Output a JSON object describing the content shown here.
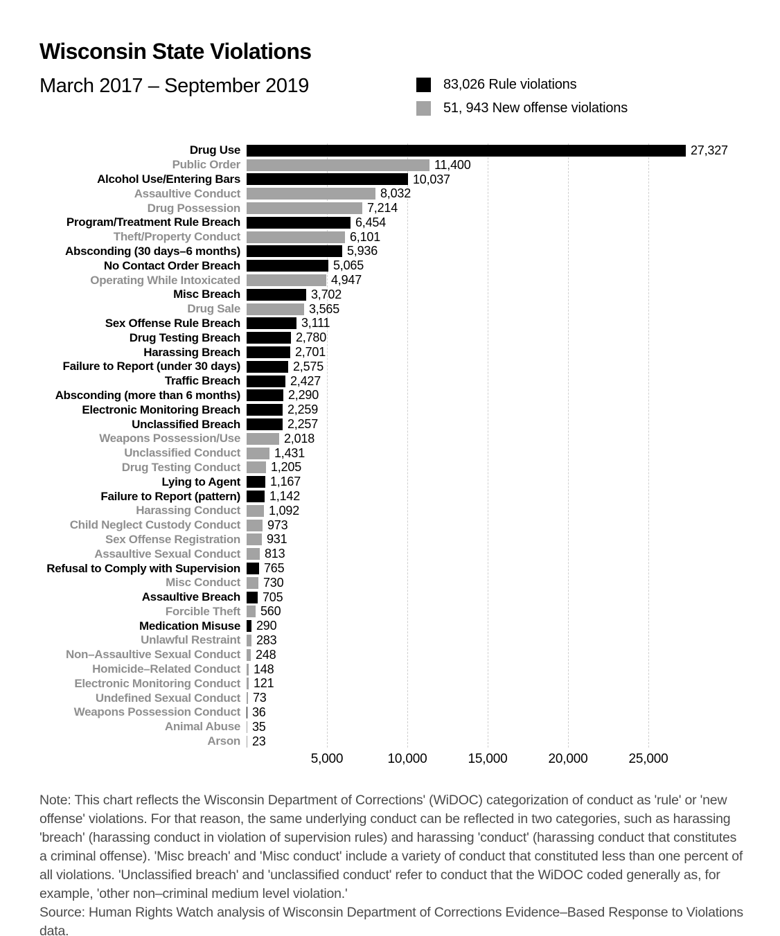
{
  "title": "Wisconsin State Violations",
  "subtitle": "March 2017 – September 2019",
  "colors": {
    "rule": "#000000",
    "new_offense": "#a3a3a3",
    "gray_label": "#8f8f8f",
    "gridline": "#cfcfcf",
    "note_text": "#4a4a4a"
  },
  "legend": {
    "items": [
      {
        "label": "83,026 Rule violations",
        "series": "rule",
        "color": "#000000"
      },
      {
        "label": "51, 943 New offense violations",
        "series": "new_offense",
        "color": "#a3a3a3"
      }
    ]
  },
  "chart_data": {
    "type": "bar",
    "orientation": "horizontal",
    "title": "Wisconsin State Violations",
    "xlabel": "",
    "ylabel": "",
    "xlim": [
      0,
      28000
    ],
    "grid": "vertical-dashed",
    "legend_position": "top-right",
    "x_ticks": [
      {
        "value": 5000,
        "label": "5,000"
      },
      {
        "value": 10000,
        "label": "10,000"
      },
      {
        "value": 15000,
        "label": "15,000"
      },
      {
        "value": 20000,
        "label": "20,000"
      },
      {
        "value": 25000,
        "label": "25,000"
      }
    ],
    "bars": [
      {
        "category": "Drug Use",
        "value": 27327,
        "display": "27,327",
        "series": "rule",
        "label_color": "dark"
      },
      {
        "category": "Public Order",
        "value": 11400,
        "display": "11,400",
        "series": "new_offense",
        "label_color": "gray"
      },
      {
        "category": "Alcohol Use/Entering Bars",
        "value": 10037,
        "display": "10,037",
        "series": "rule",
        "label_color": "dark"
      },
      {
        "category": "Assaultive Conduct",
        "value": 8032,
        "display": "8,032",
        "series": "new_offense",
        "label_color": "gray"
      },
      {
        "category": "Drug Possession",
        "value": 7214,
        "display": "7,214",
        "series": "new_offense",
        "label_color": "gray"
      },
      {
        "category": "Program/Treatment Rule Breach",
        "value": 6454,
        "display": "6,454",
        "series": "rule",
        "label_color": "dark"
      },
      {
        "category": "Theft/Property Conduct",
        "value": 6101,
        "display": "6,101",
        "series": "new_offense",
        "label_color": "gray"
      },
      {
        "category": "Absconding (30 days–6 months)",
        "value": 5936,
        "display": "5,936",
        "series": "rule",
        "label_color": "dark"
      },
      {
        "category": "No Contact Order Breach",
        "value": 5065,
        "display": "5,065",
        "series": "rule",
        "label_color": "dark"
      },
      {
        "category": "Operating While Intoxicated",
        "value": 4947,
        "display": "4,947",
        "series": "new_offense",
        "label_color": "gray"
      },
      {
        "category": "Misc Breach",
        "value": 3702,
        "display": "3,702",
        "series": "rule",
        "label_color": "dark"
      },
      {
        "category": "Drug Sale",
        "value": 3565,
        "display": "3,565",
        "series": "new_offense",
        "label_color": "gray"
      },
      {
        "category": "Sex Offense Rule Breach",
        "value": 3111,
        "display": "3,111",
        "series": "rule",
        "label_color": "dark"
      },
      {
        "category": "Drug Testing Breach",
        "value": 2780,
        "display": "2,780",
        "series": "rule",
        "label_color": "dark"
      },
      {
        "category": "Harassing Breach",
        "value": 2701,
        "display": "2,701",
        "series": "rule",
        "label_color": "dark"
      },
      {
        "category": "Failure to Report (under 30 days)",
        "value": 2575,
        "display": "2,575",
        "series": "rule",
        "label_color": "dark"
      },
      {
        "category": "Traffic Breach",
        "value": 2427,
        "display": "2,427",
        "series": "rule",
        "label_color": "dark"
      },
      {
        "category": "Absconding (more than 6 months)",
        "value": 2290,
        "display": "2,290",
        "series": "rule",
        "label_color": "dark"
      },
      {
        "category": "Electronic Monitoring Breach",
        "value": 2259,
        "display": "2,259",
        "series": "rule",
        "label_color": "dark"
      },
      {
        "category": "Unclassified Breach",
        "value": 2257,
        "display": "2,257",
        "series": "rule",
        "label_color": "dark"
      },
      {
        "category": "Weapons Possession/Use",
        "value": 2018,
        "display": "2,018",
        "series": "new_offense",
        "label_color": "gray"
      },
      {
        "category": "Unclassified Conduct",
        "value": 1431,
        "display": "1,431",
        "series": "new_offense",
        "label_color": "gray"
      },
      {
        "category": "Drug Testing Conduct",
        "value": 1205,
        "display": "1,205",
        "series": "new_offense",
        "label_color": "gray"
      },
      {
        "category": "Lying to Agent",
        "value": 1167,
        "display": "1,167",
        "series": "rule",
        "label_color": "dark"
      },
      {
        "category": "Failure to Report (pattern)",
        "value": 1142,
        "display": "1,142",
        "series": "rule",
        "label_color": "dark"
      },
      {
        "category": "Harassing Conduct",
        "value": 1092,
        "display": "1,092",
        "series": "new_offense",
        "label_color": "gray"
      },
      {
        "category": "Child Neglect Custody Conduct",
        "value": 973,
        "display": "973",
        "series": "new_offense",
        "label_color": "gray"
      },
      {
        "category": "Sex Offense Registration",
        "value": 931,
        "display": "931",
        "series": "new_offense",
        "label_color": "gray"
      },
      {
        "category": "Assaultive Sexual Conduct",
        "value": 813,
        "display": "813",
        "series": "new_offense",
        "label_color": "gray"
      },
      {
        "category": "Refusal to Comply with Supervision",
        "value": 765,
        "display": "765",
        "series": "rule",
        "label_color": "dark"
      },
      {
        "category": "Misc Conduct",
        "value": 730,
        "display": "730",
        "series": "new_offense",
        "label_color": "gray"
      },
      {
        "category": "Assaultive Breach",
        "value": 705,
        "display": "705",
        "series": "rule",
        "label_color": "dark"
      },
      {
        "category": "Forcible Theft",
        "value": 560,
        "display": "560",
        "series": "new_offense",
        "label_color": "gray"
      },
      {
        "category": "Medication Misuse",
        "value": 290,
        "display": "290",
        "series": "rule",
        "label_color": "dark"
      },
      {
        "category": "Unlawful Restraint",
        "value": 283,
        "display": "283",
        "series": "new_offense",
        "label_color": "gray"
      },
      {
        "category": "Non–Assaultive Sexual Conduct",
        "value": 248,
        "display": "248",
        "series": "new_offense",
        "label_color": "gray"
      },
      {
        "category": "Homicide–Related Conduct",
        "value": 148,
        "display": "148",
        "series": "new_offense",
        "label_color": "gray"
      },
      {
        "category": "Electronic Monitoring Conduct",
        "value": 121,
        "display": "121",
        "series": "new_offense",
        "label_color": "gray"
      },
      {
        "category": "Undefined Sexual Conduct",
        "value": 73,
        "display": "73",
        "series": "new_offense",
        "label_color": "gray"
      },
      {
        "category": "Weapons Possession Conduct",
        "value": 36,
        "display": "36",
        "series": "rule",
        "label_color": "gray"
      },
      {
        "category": "Animal Abuse",
        "value": 35,
        "display": "35",
        "series": "new_offense",
        "label_color": "gray"
      },
      {
        "category": "Arson",
        "value": 23,
        "display": "23",
        "series": "new_offense",
        "label_color": "gray"
      }
    ]
  },
  "note": "Note: This chart reflects the Wisconsin Department of Corrections' (WiDOC) categorization of conduct as 'rule' or 'new offense' violations. For that reason, the same underlying conduct can be reflected in two categories, such as harassing 'breach' (harassing conduct in violation of supervision rules) and harassing 'conduct' (harassing conduct that constitutes a criminal offense). 'Misc breach' and 'Misc conduct' include a variety of conduct that constituted less than one percent of all violations. 'Unclassified breach' and 'unclassified conduct' refer to conduct that the WiDOC coded generally as, for example, 'other non–criminal medium level violation.'",
  "source": "Source: Human Rights Watch analysis of Wisconsin Department of Corrections Evidence–Based Response to Violations data."
}
